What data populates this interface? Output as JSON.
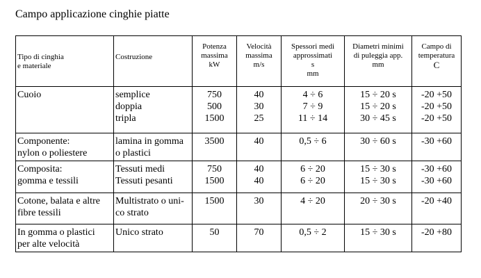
{
  "title": "Campo applicazione cinghie piatte",
  "table": {
    "headers": [
      [
        "Tipo di cinghia",
        "e materiale"
      ],
      [
        "Costruzione"
      ],
      [
        "Potenza",
        "massima",
        "kW"
      ],
      [
        "Velocità",
        "massima",
        "m/s"
      ],
      [
        "Spessori medi",
        "approssimati",
        "s",
        "mm"
      ],
      [
        "Diametri minimi",
        "di puleggia app.",
        "mm"
      ],
      [
        "Campo di",
        "temperatura",
        "C"
      ]
    ],
    "rows": [
      {
        "tipo": [
          "Cuoio"
        ],
        "costruzione": [
          "semplice",
          "doppia",
          "tripla"
        ],
        "potenza": [
          "750",
          "500",
          "1500"
        ],
        "velocita": [
          "40",
          "30",
          "25"
        ],
        "spessori": [
          "4 ÷ 6",
          "7 ÷ 9",
          "11 ÷ 14"
        ],
        "diametri": [
          "15 ÷ 20 s",
          "15 ÷ 20 s",
          "30 ÷ 45 s"
        ],
        "temperatura": [
          "-20 +50",
          "-20 +50",
          "-20 +50"
        ]
      },
      {
        "tipo": [
          "Componente:",
          "nylon o poliestere"
        ],
        "costruzione": [
          "lamina in gomma",
          "o plastici"
        ],
        "potenza": [
          "3500"
        ],
        "velocita": [
          "40"
        ],
        "spessori": [
          "0,5 ÷ 6"
        ],
        "diametri": [
          "30 ÷ 60 s"
        ],
        "temperatura": [
          "-30 +60"
        ]
      },
      {
        "tipo": [
          "Composita:",
          "gomma e tessili"
        ],
        "costruzione": [
          "Tessuti medi",
          "Tessuti pesanti"
        ],
        "potenza": [
          "750",
          "1500"
        ],
        "velocita": [
          "40",
          "40"
        ],
        "spessori": [
          "6 ÷ 20",
          "6 ÷ 20"
        ],
        "diametri": [
          "15 ÷ 30 s",
          "15 ÷ 30 s"
        ],
        "temperatura": [
          "-30 +60",
          "-30 +60"
        ]
      },
      {
        "tipo": [
          "Cotone, balata e altre",
          "fibre tessili"
        ],
        "costruzione": [
          "Multistrato o uni-",
          "co strato"
        ],
        "potenza": [
          "1500"
        ],
        "velocita": [
          "30"
        ],
        "spessori": [
          "4 ÷ 20"
        ],
        "diametri": [
          "20 ÷ 30 s"
        ],
        "temperatura": [
          "-20 +40"
        ]
      },
      {
        "tipo": [
          "In gomma o plastici",
          "per alte velocità"
        ],
        "costruzione": [
          "Unico strato"
        ],
        "potenza": [
          "50"
        ],
        "velocita": [
          "70"
        ],
        "spessori": [
          "0,5 ÷ 2"
        ],
        "diametri": [
          "15 ÷ 30 s"
        ],
        "temperatura": [
          "-20 +80"
        ]
      }
    ]
  }
}
